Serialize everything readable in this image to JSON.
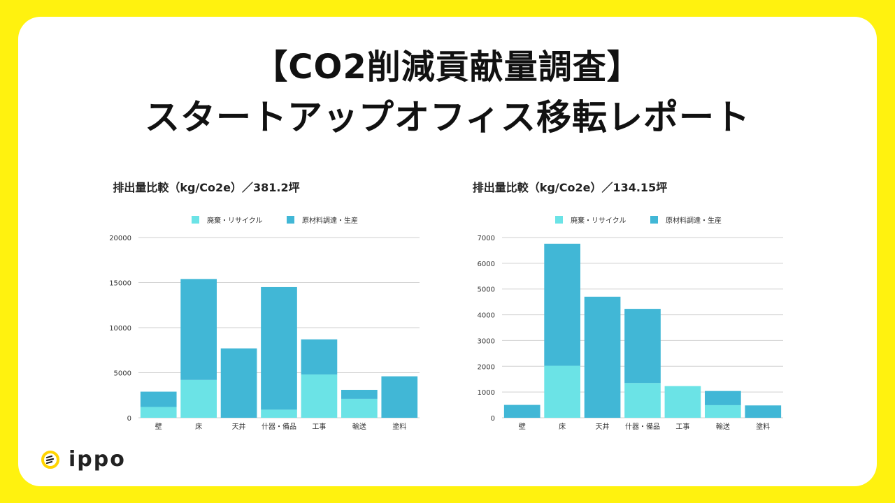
{
  "header": {
    "line1": "【CO2削減貢献量調査】",
    "line2": "スタートアップオフィス移転レポート"
  },
  "colors": {
    "background": "#FFF20F",
    "recycle": "#6BE3E6",
    "material": "#41B7D6"
  },
  "brand": {
    "logo_icon": "ippo-logo-icon",
    "name": "ippo"
  },
  "chart_data": [
    {
      "type": "bar",
      "stacked": true,
      "title": "排出量比較（kg/Co2e）／381.2坪",
      "categories": [
        "壁",
        "床",
        "天井",
        "什器・備品",
        "工事",
        "輸送",
        "塗料"
      ],
      "series": [
        {
          "name": "廃棄・リサイクル",
          "values": [
            1200,
            4200,
            0,
            900,
            4800,
            2100,
            0
          ]
        },
        {
          "name": "原材料調達・生産",
          "values": [
            1700,
            11200,
            7700,
            13600,
            3900,
            1000,
            4600
          ]
        }
      ],
      "yticks": [
        0,
        5000,
        10000,
        15000,
        20000
      ],
      "ylim": [
        0,
        20000
      ],
      "legend": "top",
      "grid": true
    },
    {
      "type": "bar",
      "stacked": true,
      "title": "排出量比較（kg/Co2e）／134.15坪",
      "categories": [
        "壁",
        "床",
        "天井",
        "什器・備品",
        "工事",
        "輸送",
        "塗料"
      ],
      "series": [
        {
          "name": "廃棄・リサイクル",
          "values": [
            0,
            2020,
            0,
            1350,
            1230,
            490,
            0
          ]
        },
        {
          "name": "原材料調達・生産",
          "values": [
            500,
            4740,
            4700,
            2880,
            0,
            550,
            480
          ]
        }
      ],
      "yticks": [
        0,
        1000,
        2000,
        3000,
        4000,
        5000,
        6000,
        7000
      ],
      "ylim": [
        0,
        7000
      ],
      "legend": "top",
      "grid": true
    }
  ]
}
